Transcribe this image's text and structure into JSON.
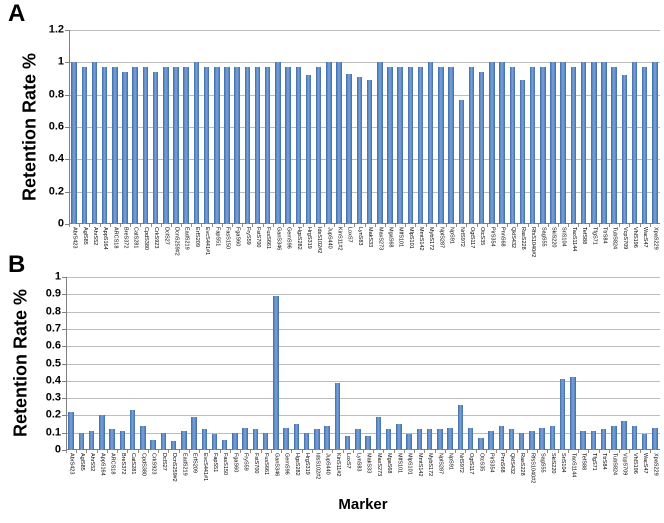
{
  "figure_title": "",
  "xlabel": "Marker",
  "colors": {
    "bar": "#4F81BD",
    "grid": "#BDBDBD",
    "axis": "#7F7F7F",
    "text": "#000000"
  },
  "chart_data": [
    {
      "type": "bar",
      "panel": "A",
      "title": "",
      "ylabel": "Retention Rate %",
      "xlabel": "Marker",
      "ylim": [
        0,
        1.2
      ],
      "grid": true,
      "legend": "none",
      "ytick_values": [
        0,
        0.2,
        0.4,
        0.6,
        0.8,
        1,
        1.2
      ],
      "ytick_labels": [
        "0",
        "0.2",
        "0.4",
        "0.6",
        "0.8",
        "1",
        "1.2"
      ],
      "categories": [
        "AbrS423",
        "AglS85",
        "AhrS52",
        "AppS164",
        "ARCS18",
        "BreS372",
        "CatS281",
        "CpdS380",
        "CrkS923",
        "DclS27",
        "DcnS259#2",
        "EadS219",
        "ErfS209",
        "EvcS441#1",
        "FapS51",
        "FasS150",
        "FgaS60",
        "FryS59",
        "FstS700",
        "FusS661",
        "GanS346",
        "GemS96",
        "HgsS282",
        "HrgS319",
        "IdsS102#2",
        "JupS440",
        "KinS11#2",
        "LoxS7",
        "LynS83",
        "MakS33",
        "MaxS273",
        "MgaS68",
        "MlfS101",
        "MlpS101",
        "MmtS142",
        "MybS172",
        "NplS287",
        "NpS91",
        "NrlS972",
        "OgtS117",
        "OtcS35",
        "PirS354",
        "PnnS68",
        "QklS432",
        "RasS228",
        "RfsS1040#2",
        "SagS55",
        "SkiS220",
        "SriS104",
        "TaoS1144",
        "TefS88",
        "TfgS71",
        "TtrS84",
        "TubS824",
        "VcpS709",
        "VhlS196",
        "WacS47",
        "XpaS229"
      ],
      "values": [
        1,
        0.97,
        1,
        0.97,
        0.97,
        0.94,
        0.97,
        0.97,
        0.94,
        0.97,
        0.97,
        0.97,
        1,
        0.97,
        0.97,
        0.97,
        0.97,
        0.97,
        0.97,
        0.97,
        1,
        0.97,
        0.97,
        0.92,
        0.97,
        1,
        1,
        0.93,
        0.91,
        0.89,
        1,
        0.97,
        0.97,
        0.97,
        0.97,
        1,
        0.97,
        0.97,
        0.77,
        0.97,
        0.94,
        1,
        1,
        0.97,
        0.89,
        0.97,
        0.97,
        1,
        1,
        0.97,
        1,
        1,
        1,
        0.97,
        0.92,
        1,
        0.97,
        1
      ]
    },
    {
      "type": "bar",
      "panel": "B",
      "title": "",
      "ylabel": "Retention Rate %",
      "xlabel": "Marker",
      "ylim": [
        0,
        1
      ],
      "grid": true,
      "legend": "none",
      "ytick_values": [
        0,
        0.1,
        0.2,
        0.3,
        0.4,
        0.5,
        0.6,
        0.7,
        0.8,
        0.9,
        1
      ],
      "ytick_labels": [
        "0",
        "0.1",
        "0.2",
        "0.3",
        "0.4",
        "0.5",
        "0.6",
        "0.7",
        "0.8",
        "0.9",
        "1"
      ],
      "categories": [
        "AbrS423",
        "AglS85",
        "AhrS52",
        "AppS164",
        "ARCS18",
        "BreS372",
        "CatS281",
        "CpdS380",
        "CrkS923",
        "DclS27",
        "DcnS259#2",
        "EadS219",
        "ErfS209",
        "EvcS441#1",
        "FapS51",
        "FasS150",
        "FgaS60",
        "FryS59",
        "FstS700",
        "FusS661",
        "GanS346",
        "GemS96",
        "HgsS282",
        "HrgS319",
        "IdsS102#2",
        "JupS440",
        "KinS11#2",
        "LoxS7",
        "LynS83",
        "MakS33",
        "MaxS273",
        "MgaS68",
        "MlfS101",
        "MlpS101",
        "MmtS142",
        "MybS172",
        "NplS287",
        "NpS91",
        "NrlS972",
        "OgtS117",
        "OtcS35",
        "PirS354",
        "PnnS68",
        "QklS432",
        "RasS228",
        "RfsS1040#2",
        "SagS55",
        "SkiS220",
        "SriS104",
        "TaoS1144",
        "TefS88",
        "TfgS71",
        "TtrS84",
        "TubS824",
        "VcpS709",
        "VhlS196",
        "WacS47",
        "XpaS229"
      ],
      "values": [
        0.22,
        0.1,
        0.11,
        0.2,
        0.12,
        0.11,
        0.23,
        0.14,
        0.06,
        0.1,
        0.05,
        0.11,
        0.19,
        0.12,
        0.09,
        0.06,
        0.1,
        0.13,
        0.12,
        0.1,
        0.89,
        0.13,
        0.15,
        0.1,
        0.12,
        0.14,
        0.39,
        0.08,
        0.12,
        0.08,
        0.19,
        0.12,
        0.15,
        0.09,
        0.12,
        0.12,
        0.12,
        0.13,
        0.26,
        0.13,
        0.07,
        0.11,
        0.14,
        0.12,
        0.1,
        0.11,
        0.13,
        0.14,
        0.41,
        0.42,
        0.11,
        0.11,
        0.12,
        0.14,
        0.17,
        0.14,
        0.09,
        0.13
      ]
    }
  ]
}
